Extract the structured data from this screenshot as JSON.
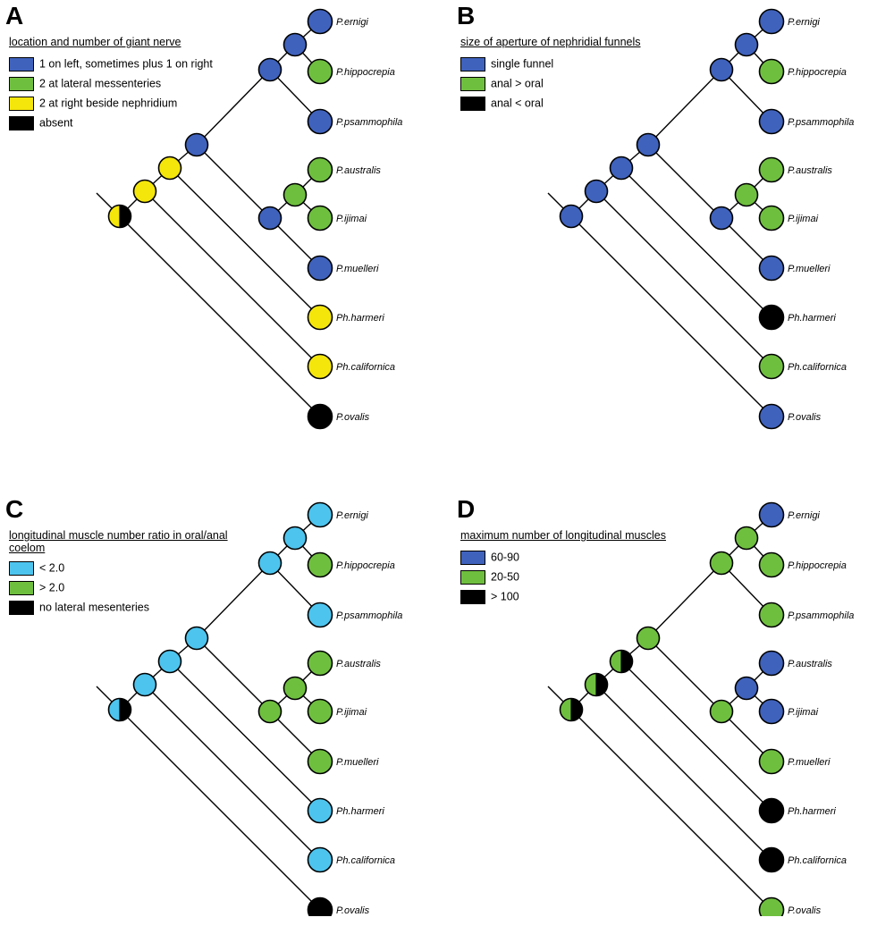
{
  "colors": {
    "blue": "#3f62bd",
    "green": "#6fbf3f",
    "yellow": "#f4e60b",
    "cyan": "#4dc4ee",
    "black": "#000000",
    "white": "#ffffff"
  },
  "taxa": [
    "P.ernigi",
    "P.hippocrepia",
    "P.psammophila",
    "P.australis",
    "P.ijimai",
    "P.muelleri",
    "Ph.harmeri",
    "Ph.californica",
    "P.ovalis"
  ],
  "panels": [
    {
      "letter": "A",
      "legend_title": "location and number of giant nerve",
      "legend": [
        {
          "label": "1 on left, sometimes plus 1 on right",
          "color": "blue"
        },
        {
          "label": "2 at lateral messenteries",
          "color": "green"
        },
        {
          "label": "2 at right beside nephridium",
          "color": "yellow"
        },
        {
          "label": "absent",
          "color": "black"
        }
      ],
      "tips": [
        "blue",
        "green",
        "blue",
        "green",
        "green",
        "blue",
        "yellow",
        "yellow",
        "black"
      ],
      "nodes": {
        "ernigi_hippo": [
          "blue"
        ],
        "top_clade": [
          "blue"
        ],
        "aus_iji": [
          "green"
        ],
        "mid_clade": [
          "blue"
        ],
        "pseudo_clade": [
          "blue"
        ],
        "harmeri_node": [
          "yellow"
        ],
        "californica_node": [
          "yellow"
        ],
        "root": [
          "yellow",
          "black"
        ]
      }
    },
    {
      "letter": "B",
      "legend_title": "size of aperture of nephridial funnels",
      "legend": [
        {
          "label": "single funnel",
          "color": "blue"
        },
        {
          "label": "anal > oral",
          "color": "green"
        },
        {
          "label": "anal < oral",
          "color": "black"
        }
      ],
      "tips": [
        "blue",
        "green",
        "blue",
        "green",
        "green",
        "blue",
        "black",
        "green",
        "blue"
      ],
      "nodes": {
        "ernigi_hippo": [
          "blue"
        ],
        "top_clade": [
          "blue"
        ],
        "aus_iji": [
          "green"
        ],
        "mid_clade": [
          "blue"
        ],
        "pseudo_clade": [
          "blue"
        ],
        "harmeri_node": [
          "blue"
        ],
        "californica_node": [
          "blue"
        ],
        "root": [
          "blue"
        ]
      }
    },
    {
      "letter": "C",
      "legend_title": "longitudinal muscle number ratio in oral/anal coelom",
      "legend": [
        {
          "label": "< 2.0",
          "color": "cyan"
        },
        {
          "label": "> 2.0",
          "color": "green"
        },
        {
          "label": "no lateral mesenteries",
          "color": "black"
        }
      ],
      "tips": [
        "cyan",
        "green",
        "cyan",
        "green",
        "green",
        "green",
        "cyan",
        "cyan",
        "black"
      ],
      "nodes": {
        "ernigi_hippo": [
          "cyan"
        ],
        "top_clade": [
          "cyan"
        ],
        "aus_iji": [
          "green"
        ],
        "mid_clade": [
          "green"
        ],
        "pseudo_clade": [
          "cyan"
        ],
        "harmeri_node": [
          "cyan"
        ],
        "californica_node": [
          "cyan"
        ],
        "root": [
          "cyan",
          "black"
        ]
      }
    },
    {
      "letter": "D",
      "legend_title": "maximum number of longitudinal muscles",
      "legend": [
        {
          "label": "60-90",
          "color": "blue"
        },
        {
          "label": "20-50",
          "color": "green"
        },
        {
          "label": "> 100",
          "color": "black"
        }
      ],
      "tips": [
        "blue",
        "green",
        "green",
        "blue",
        "blue",
        "green",
        "black",
        "black",
        "green"
      ],
      "nodes": {
        "ernigi_hippo": [
          "green"
        ],
        "top_clade": [
          "green"
        ],
        "aus_iji": [
          "blue"
        ],
        "mid_clade": [
          "green"
        ],
        "pseudo_clade": [
          "green"
        ],
        "harmeri_node": [
          "green",
          "black"
        ],
        "californica_node": [
          "green",
          "black"
        ],
        "root": [
          "green",
          "black"
        ]
      }
    }
  ]
}
